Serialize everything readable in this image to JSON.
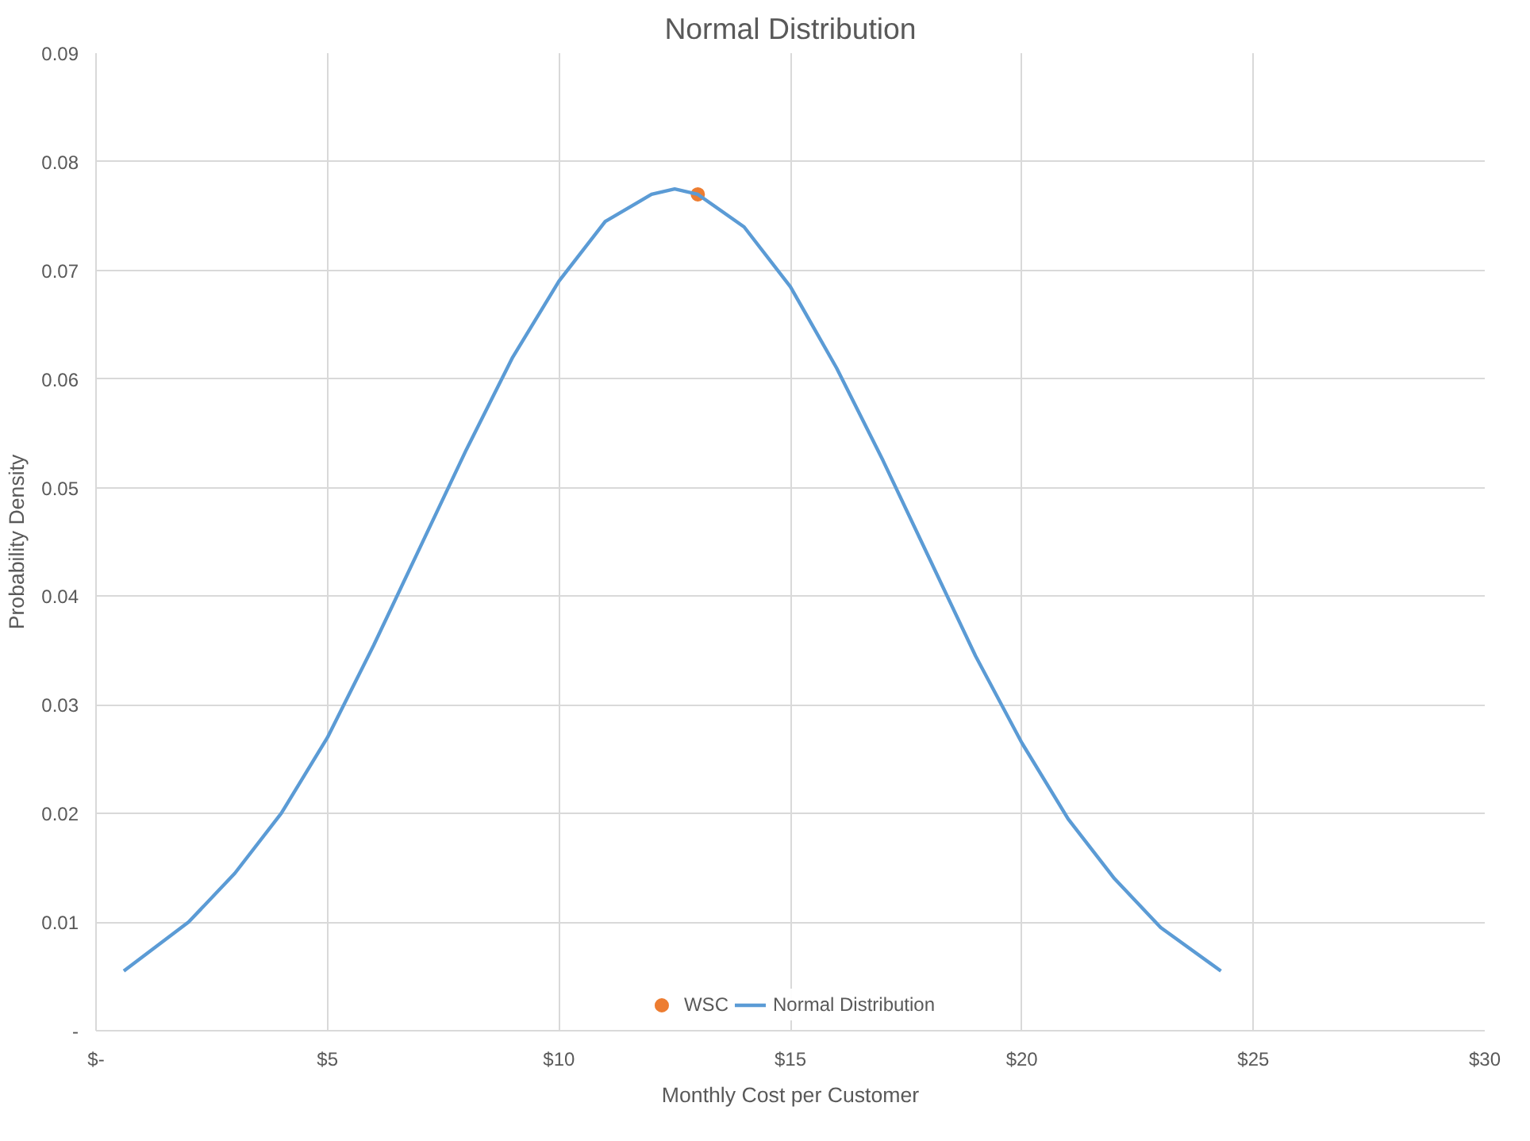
{
  "chart_data": {
    "type": "line",
    "title": "Normal Distribution",
    "xlabel": "Monthly Cost per Customer",
    "ylabel": "Probability Density",
    "xlim": [
      0,
      30
    ],
    "xticks": [
      {
        "value": 0,
        "label": "$-"
      },
      {
        "value": 5,
        "label": "$5"
      },
      {
        "value": 10,
        "label": "$10"
      },
      {
        "value": 15,
        "label": "$15"
      },
      {
        "value": 20,
        "label": "$20"
      },
      {
        "value": 25,
        "label": "$25"
      },
      {
        "value": 30,
        "label": "$30"
      }
    ],
    "ylim": [
      0,
      0.09
    ],
    "yticks": [
      {
        "value": 0,
        "label": "-"
      },
      0.01,
      0.02,
      0.03,
      0.04,
      0.05,
      0.06,
      0.07,
      0.08,
      0.09
    ],
    "grid": true,
    "legend": "bottom",
    "series": [
      {
        "name": "WSC",
        "type": "scatter",
        "color": "#ed7d31",
        "x": [
          13
        ],
        "values": [
          0.077
        ]
      },
      {
        "name": "Normal Distribution",
        "color": "#5b9bd5",
        "x": [
          0.6,
          2,
          3,
          4,
          5,
          6,
          7,
          8,
          9,
          10,
          11,
          12,
          12.5,
          13,
          14,
          15,
          16,
          17,
          18,
          19,
          20,
          21,
          22,
          23,
          24.3
        ],
        "values": [
          0.0055,
          0.01,
          0.0145,
          0.02,
          0.027,
          0.0355,
          0.0445,
          0.0535,
          0.062,
          0.069,
          0.0745,
          0.077,
          0.0775,
          0.077,
          0.074,
          0.0685,
          0.061,
          0.0525,
          0.0435,
          0.0345,
          0.0265,
          0.0195,
          0.014,
          0.0095,
          0.0055
        ]
      }
    ]
  }
}
